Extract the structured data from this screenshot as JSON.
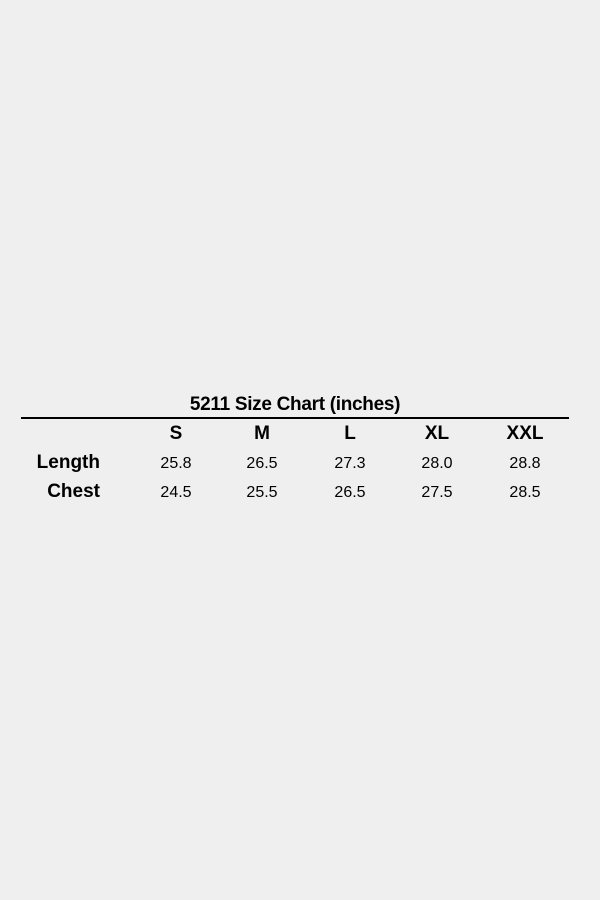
{
  "title": "5211 Size Chart (inches)",
  "sizes": [
    "S",
    "M",
    "L",
    "XL",
    "XXL"
  ],
  "rows": [
    {
      "label": "Length",
      "values": [
        "25.8",
        "26.5",
        "27.3",
        "28.0",
        "28.8"
      ]
    },
    {
      "label": "Chest",
      "values": [
        "24.5",
        "25.5",
        "26.5",
        "27.5",
        "28.5"
      ]
    }
  ]
}
